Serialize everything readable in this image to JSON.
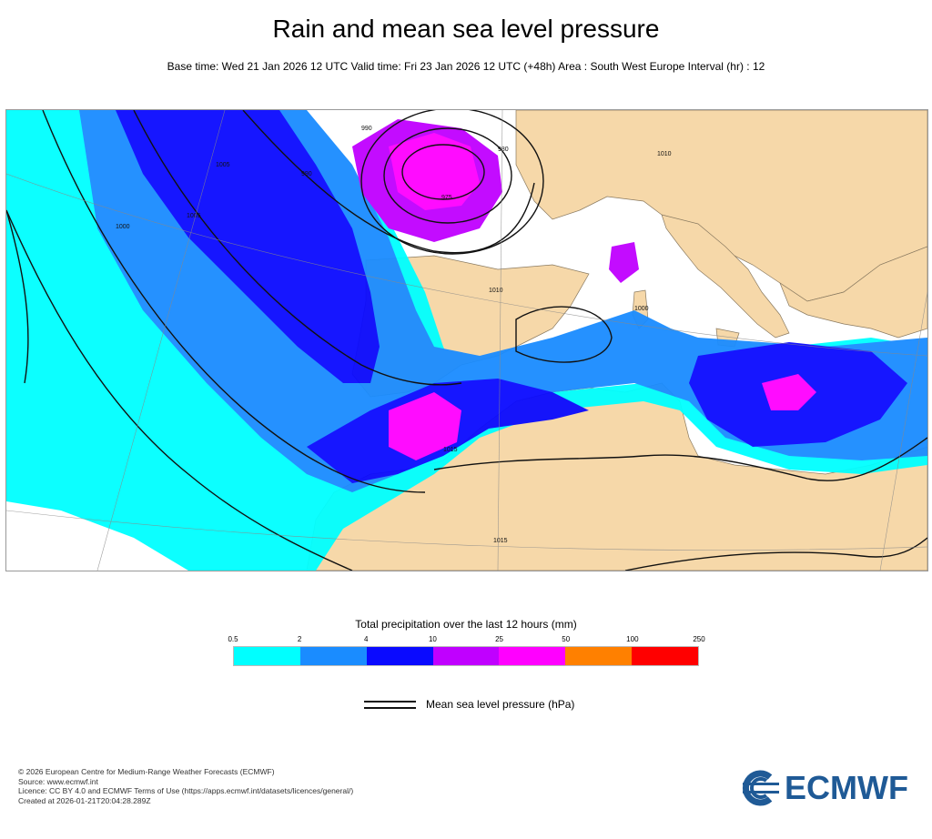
{
  "header": {
    "title": "Rain and mean sea level pressure",
    "subtitle": "Base time: Wed 21 Jan 2026 12 UTC Valid time: Fri 23 Jan 2026 12 UTC (+48h) Area : South West Europe Interval (hr) : 12"
  },
  "map": {
    "isobar_labels": [
      "990",
      "980",
      "975",
      "990",
      "1005",
      "1005",
      "1000",
      "1010",
      "1000",
      "1015",
      "1015",
      "1010"
    ],
    "colors": {
      "land": "#f6d8a9",
      "sea": "#ffffff",
      "isobar": "#111111",
      "border": "#555555"
    }
  },
  "legend": {
    "title": "Total precipitation over the last 12 hours (mm)",
    "thresholds": [
      "0.5",
      "2",
      "4",
      "10",
      "25",
      "50",
      "100",
      "250"
    ],
    "colors": [
      "#00ffff",
      "#1a8cff",
      "#0a0aff",
      "#c000ff",
      "#ff00ff",
      "#ff8000",
      "#ff0000"
    ],
    "pressure_label": "Mean sea level pressure (hPa)"
  },
  "footer": {
    "lines": [
      "© 2026 European Centre for Medium-Range Weather Forecasts (ECMWF)",
      "Source: www.ecmwf.int",
      "Licence: CC BY 4.0 and ECMWF Terms of Use (https://apps.ecmwf.int/datasets/licences/general/)",
      "Created at 2026-01-21T20:04:28.289Z"
    ]
  },
  "logo": {
    "text": "ECMWF",
    "color": "#1f5a96"
  }
}
